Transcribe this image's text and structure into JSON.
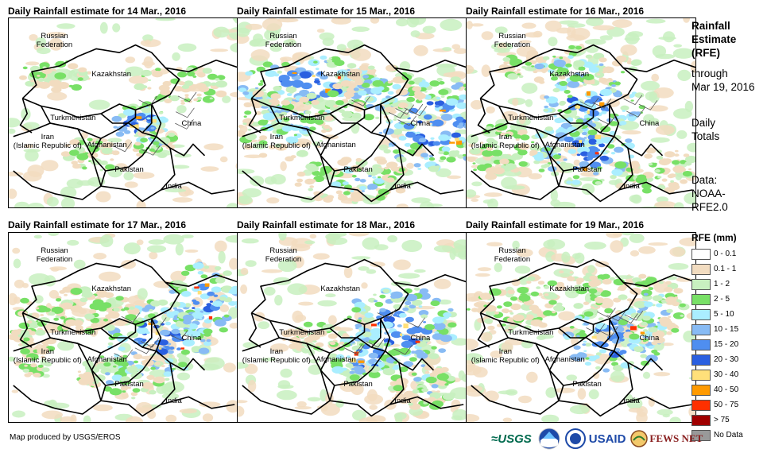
{
  "panels": [
    {
      "title": "Daily Rainfall estimate for 14 Mar., 2016",
      "seed": 14,
      "intensity": 0.6,
      "blobs": [
        [
          0.58,
          0.55,
          0.12,
          0.1,
          3
        ],
        [
          0.62,
          0.65,
          0.1,
          0.08,
          2
        ],
        [
          0.35,
          0.72,
          0.12,
          0.1,
          1
        ],
        [
          0.75,
          0.35,
          0.2,
          0.1,
          1
        ],
        [
          0.2,
          0.3,
          0.15,
          0.08,
          1
        ]
      ]
    },
    {
      "title": "Daily Rainfall estimate for 15 Mar., 2016",
      "seed": 15,
      "intensity": 0.9,
      "blobs": [
        [
          0.3,
          0.35,
          0.3,
          0.15,
          3
        ],
        [
          0.85,
          0.55,
          0.25,
          0.25,
          3
        ],
        [
          0.2,
          0.55,
          0.2,
          0.2,
          2
        ],
        [
          0.5,
          0.85,
          0.25,
          0.12,
          2
        ],
        [
          0.6,
          0.4,
          0.2,
          0.15,
          2
        ]
      ]
    },
    {
      "title": "Daily Rainfall estimate for 16 Mar., 2016",
      "seed": 16,
      "intensity": 1.0,
      "blobs": [
        [
          0.55,
          0.45,
          0.22,
          0.15,
          3
        ],
        [
          0.5,
          0.7,
          0.22,
          0.18,
          3
        ],
        [
          0.45,
          0.25,
          0.3,
          0.1,
          2
        ],
        [
          0.15,
          0.7,
          0.15,
          0.15,
          1
        ],
        [
          0.85,
          0.8,
          0.15,
          0.12,
          1
        ]
      ]
    },
    {
      "title": "Daily Rainfall estimate for 17 Mar., 2016",
      "seed": 17,
      "intensity": 0.9,
      "blobs": [
        [
          0.65,
          0.55,
          0.22,
          0.2,
          3
        ],
        [
          0.85,
          0.35,
          0.15,
          0.2,
          3
        ],
        [
          0.3,
          0.4,
          0.25,
          0.12,
          1
        ],
        [
          0.5,
          0.75,
          0.2,
          0.12,
          2
        ],
        [
          0.1,
          0.6,
          0.1,
          0.15,
          1
        ]
      ]
    },
    {
      "title": "Daily Rainfall estimate for 18 Mar., 2016",
      "seed": 18,
      "intensity": 0.9,
      "blobs": [
        [
          0.7,
          0.5,
          0.25,
          0.22,
          3
        ],
        [
          0.55,
          0.65,
          0.15,
          0.12,
          3
        ],
        [
          0.8,
          0.8,
          0.15,
          0.12,
          2
        ],
        [
          0.35,
          0.55,
          0.15,
          0.08,
          1
        ]
      ]
    },
    {
      "title": "Daily Rainfall estimate for 19 Mar., 2016",
      "seed": 19,
      "intensity": 0.8,
      "blobs": [
        [
          0.65,
          0.55,
          0.22,
          0.18,
          3
        ],
        [
          0.8,
          0.4,
          0.15,
          0.18,
          2
        ],
        [
          0.2,
          0.4,
          0.2,
          0.12,
          1
        ],
        [
          0.45,
          0.3,
          0.25,
          0.1,
          1
        ]
      ]
    }
  ],
  "country_labels": {
    "russia": "Russian\nFederation",
    "kazakhstan": "Kazakhstan",
    "turkmenistan": "Turkmenistan",
    "china": "China",
    "iran": "Iran\n(Islamic Republic of)",
    "afghanistan": "Afghanistan",
    "pakistan": "Pakistan",
    "india": "India"
  },
  "side_text": {
    "line1": "Rainfall",
    "line2": "Estimate",
    "line3": "(RFE)",
    "line4": "through",
    "line5": "Mar 19, 2016",
    "totals1": "Daily",
    "totals2": "Totals",
    "data1": "Data:",
    "data2": "NOAA-",
    "data3": "RFE2.0"
  },
  "legend": {
    "title": "RFE (mm)",
    "items": [
      {
        "label": "0 - 0.1",
        "color": "#ffffff"
      },
      {
        "label": "0.1 - 1",
        "color": "#f2dcc0"
      },
      {
        "label": "1 - 2",
        "color": "#c8f0c0"
      },
      {
        "label": "2 - 5",
        "color": "#78e066"
      },
      {
        "label": "5 - 10",
        "color": "#aaeeff"
      },
      {
        "label": "10 - 15",
        "color": "#88bbf4"
      },
      {
        "label": "15 - 20",
        "color": "#4f8ef0"
      },
      {
        "label": "20 - 30",
        "color": "#2a5fe0"
      },
      {
        "label": "30 - 40",
        "color": "#ffe07a"
      },
      {
        "label": "40 - 50",
        "color": "#ff9a00"
      },
      {
        "label": "50 - 75",
        "color": "#ff3000"
      },
      {
        "label": "> 75",
        "color": "#a00000"
      },
      {
        "label": "No Data",
        "color": "#999999"
      }
    ]
  },
  "credit": "Map produced by USGS/EROS",
  "logos": {
    "usgs": "≈USGS",
    "usaid": "USAID",
    "fewsnet": "FEWS NET"
  }
}
